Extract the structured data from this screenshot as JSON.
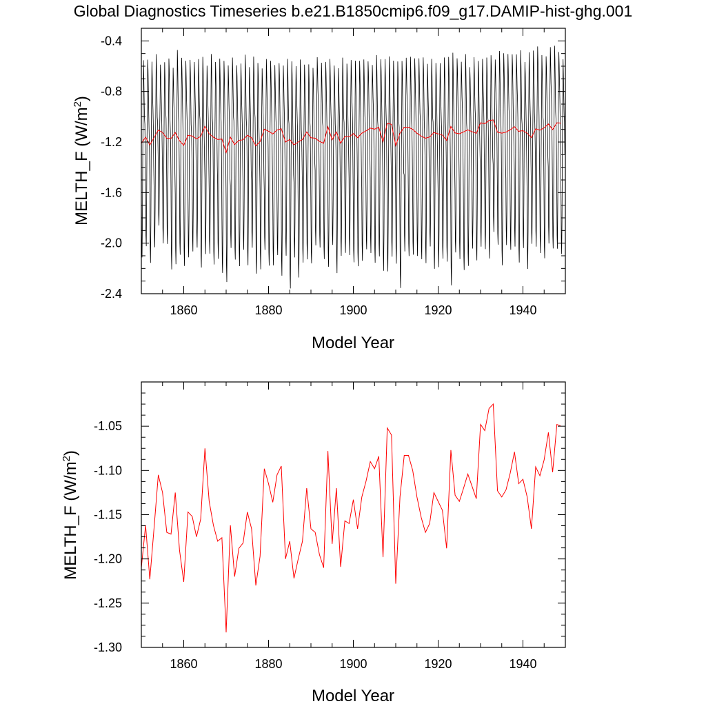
{
  "title": "Global Diagnostics Timeseries b.e21.B1850cmip6.f09_g17.DAMIP-hist-ghg.001",
  "colors": {
    "monthly": "#000000",
    "annual": "#ff0000",
    "axis": "#000000"
  },
  "chart_data": [
    {
      "type": "line",
      "ylabel": "MELTH_F (W/m",
      "ylabel_sup": "2",
      "ylabel_close": ")",
      "xlabel": "Model Year",
      "xlim": [
        1850,
        1950
      ],
      "ylim": [
        -2.4,
        -0.3
      ],
      "xticks": [
        1860,
        1880,
        1900,
        1920,
        1940
      ],
      "yticks": [
        -2.4,
        -2.0,
        -1.6,
        -1.2,
        -0.8,
        -0.4
      ],
      "ytick_labels": [
        "-2.4",
        "-2.0",
        "-1.6",
        "-1.2",
        "-0.8",
        "-0.4"
      ],
      "grid": false,
      "legend": "none",
      "series": [
        {
          "kind": "monthly",
          "x_start": 1850,
          "step": 0.0833,
          "climatology": [
            -1.55,
            -1.95,
            -2.05,
            -1.75,
            -1.25,
            -0.95,
            -0.62,
            -0.72,
            -0.88,
            -1.02,
            -1.12,
            -1.33
          ],
          "annual_minima": [
            -2.12,
            -2.03,
            -2.14,
            -2.05,
            -1.85,
            -2.0,
            -2.02,
            -2.19,
            -2.18,
            -2.09,
            -2.17,
            -2.13,
            -2.05,
            -2.04,
            -2.2,
            -2.07,
            -2.1,
            -2.16,
            -2.12,
            -2.25,
            -2.29,
            -2.05,
            -2.13,
            -2.17,
            -2.07,
            -2.16,
            -2.04,
            -2.25,
            -2.19,
            -2.07,
            -2.17,
            -2.17,
            -2.11,
            -2.24,
            -2.11,
            -2.36,
            -2.1,
            -2.29,
            -2.14,
            -2.13,
            -2.17,
            -2.0,
            -2.05,
            -2.12,
            -2.18,
            -2.03,
            -2.22,
            -2.11,
            -2.08,
            -2.08,
            -2.17,
            -2.17,
            -2.14,
            -2.06,
            -2.06,
            -2.17,
            -2.1,
            -2.21,
            -2.24,
            -2.09,
            -2.17,
            -2.36,
            -2.05,
            -2.12,
            -2.08,
            -2.1,
            -2.14,
            -2.14,
            -2.04,
            -2.2,
            -2.18,
            -2.14,
            -2.13,
            -2.34,
            -2.08,
            -2.11,
            -2.23,
            -2.17,
            -2.04,
            -2.15,
            -2.01,
            -2.06,
            -2.12,
            -1.9,
            -2.03,
            -2.16,
            -2.02,
            -2.06,
            -2.01,
            -2.17,
            -2.03,
            -2.2,
            -2.02,
            -2.01,
            -2.09,
            -2.12,
            -1.99,
            -2.06,
            -2.03,
            -2.09
          ],
          "annual_maxima": [
            -0.57,
            -0.54,
            -0.56,
            -0.52,
            -0.57,
            -0.58,
            -0.54,
            -0.6,
            -0.49,
            -0.52,
            -0.56,
            -0.56,
            -0.55,
            -0.56,
            -0.52,
            -0.59,
            -0.52,
            -0.55,
            -0.55,
            -0.56,
            -0.58,
            -0.55,
            -0.58,
            -0.58,
            -0.52,
            -0.59,
            -0.54,
            -0.57,
            -0.61,
            -0.56,
            -0.54,
            -0.6,
            -0.58,
            -0.58,
            -0.56,
            -0.55,
            -0.6,
            -0.56,
            -0.57,
            -0.6,
            -0.61,
            -0.52,
            -0.59,
            -0.55,
            -0.55,
            -0.6,
            -0.6,
            -0.55,
            -0.57,
            -0.55,
            -0.57,
            -0.54,
            -0.56,
            -0.56,
            -0.58,
            -0.53,
            -0.53,
            -0.55,
            -0.53,
            -0.54,
            -0.58,
            -0.55,
            -0.53,
            -0.54,
            -0.52,
            -0.55,
            -0.53,
            -0.57,
            -0.56,
            -0.56,
            -0.58,
            -0.54,
            -0.51,
            -0.51,
            -0.53,
            -0.56,
            -0.52,
            -0.59,
            -0.54,
            -0.56,
            -0.53,
            -0.55,
            -0.5,
            -0.55,
            -0.49,
            -0.48,
            -0.52,
            -0.5,
            -0.5,
            -0.49,
            -0.55,
            -0.5,
            -0.48,
            -0.43,
            -0.53,
            -0.51,
            -0.45,
            -0.45,
            -0.47,
            -0.56
          ]
        },
        {
          "kind": "annual",
          "x": [
            1850,
            1851,
            1852,
            1853,
            1854,
            1855,
            1856,
            1857,
            1858,
            1859,
            1860,
            1861,
            1862,
            1863,
            1864,
            1865,
            1866,
            1867,
            1868,
            1869,
            1870,
            1871,
            1872,
            1873,
            1874,
            1875,
            1876,
            1877,
            1878,
            1879,
            1880,
            1881,
            1882,
            1883,
            1884,
            1885,
            1886,
            1887,
            1888,
            1889,
            1890,
            1891,
            1892,
            1893,
            1894,
            1895,
            1896,
            1897,
            1898,
            1899,
            1900,
            1901,
            1902,
            1903,
            1904,
            1905,
            1906,
            1907,
            1908,
            1909,
            1910,
            1911,
            1912,
            1913,
            1914,
            1915,
            1916,
            1917,
            1918,
            1919,
            1920,
            1921,
            1922,
            1923,
            1924,
            1925,
            1926,
            1927,
            1928,
            1929,
            1930,
            1931,
            1932,
            1933,
            1934,
            1935,
            1936,
            1937,
            1938,
            1939,
            1940,
            1941,
            1942,
            1943,
            1944,
            1945,
            1946,
            1947,
            1948,
            1949
          ],
          "y": [
            -1.21,
            -1.162,
            -1.223,
            -1.165,
            -1.105,
            -1.125,
            -1.17,
            -1.172,
            -1.125,
            -1.19,
            -1.226,
            -1.147,
            -1.152,
            -1.175,
            -1.155,
            -1.075,
            -1.135,
            -1.162,
            -1.18,
            -1.176,
            -1.283,
            -1.162,
            -1.22,
            -1.188,
            -1.182,
            -1.147,
            -1.166,
            -1.23,
            -1.197,
            -1.098,
            -1.115,
            -1.136,
            -1.105,
            -1.095,
            -1.2,
            -1.18,
            -1.222,
            -1.2,
            -1.18,
            -1.12,
            -1.166,
            -1.17,
            -1.195,
            -1.21,
            -1.078,
            -1.183,
            -1.12,
            -1.209,
            -1.157,
            -1.16,
            -1.133,
            -1.166,
            -1.13,
            -1.112,
            -1.09,
            -1.098,
            -1.084,
            -1.198,
            -1.052,
            -1.06,
            -1.228,
            -1.13,
            -1.083,
            -1.083,
            -1.1,
            -1.13,
            -1.153,
            -1.17,
            -1.16,
            -1.125,
            -1.135,
            -1.145,
            -1.188,
            -1.077,
            -1.128,
            -1.135,
            -1.12,
            -1.104,
            -1.118,
            -1.132,
            -1.048,
            -1.055,
            -1.03,
            -1.025,
            -1.123,
            -1.13,
            -1.122,
            -1.103,
            -1.079,
            -1.115,
            -1.11,
            -1.13,
            -1.166,
            -1.096,
            -1.106,
            -1.088,
            -1.057,
            -1.102,
            -1.048,
            -1.05
          ]
        }
      ]
    },
    {
      "type": "line",
      "ylabel": "MELTH_F (W/m",
      "ylabel_sup": "2",
      "ylabel_close": ")",
      "xlabel": "Model Year",
      "xlim": [
        1850,
        1950
      ],
      "ylim": [
        -1.3,
        -1.0
      ],
      "xticks": [
        1860,
        1880,
        1900,
        1920,
        1940
      ],
      "yticks": [
        -1.3,
        -1.25,
        -1.2,
        -1.15,
        -1.1,
        -1.05
      ],
      "ytick_labels": [
        "-1.30",
        "-1.25",
        "-1.20",
        "-1.15",
        "-1.10",
        "-1.05"
      ],
      "grid": false,
      "legend": "none",
      "series": [
        {
          "kind": "annual",
          "ref": "same annual values as top panel"
        }
      ]
    }
  ]
}
